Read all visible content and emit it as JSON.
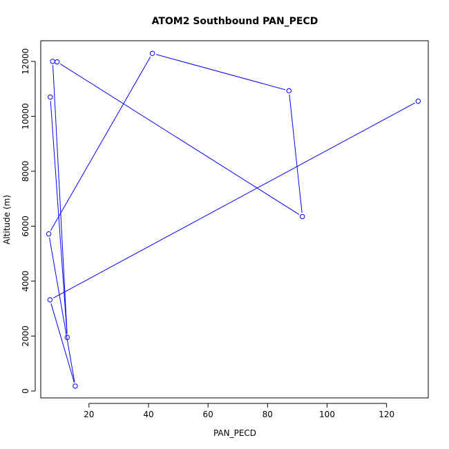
{
  "chart_data": {
    "type": "line",
    "title": "ATOM2 Southbound PAN_PECD",
    "xlabel": "PAN_PECD",
    "ylabel": "Altitude (m)",
    "xlim": [
      3.8,
      134
    ],
    "ylim": [
      -250,
      12750
    ],
    "xticks": [
      20,
      40,
      60,
      80,
      100,
      120
    ],
    "yticks": [
      0,
      2000,
      4000,
      6000,
      8000,
      10000,
      12000
    ],
    "grid": false,
    "legend": "none",
    "series_color": "#0000ff",
    "marker": "open-circle",
    "series": [
      {
        "x": [
          7.0,
          12.7,
          7.8,
          9.3,
          91.7,
          87.2,
          41.3,
          6.5,
          15.4,
          6.9,
          130.6
        ],
        "y": [
          10700,
          1950,
          12000,
          11980,
          6350,
          10930,
          12290,
          5720,
          180,
          3320,
          10550
        ]
      }
    ]
  }
}
